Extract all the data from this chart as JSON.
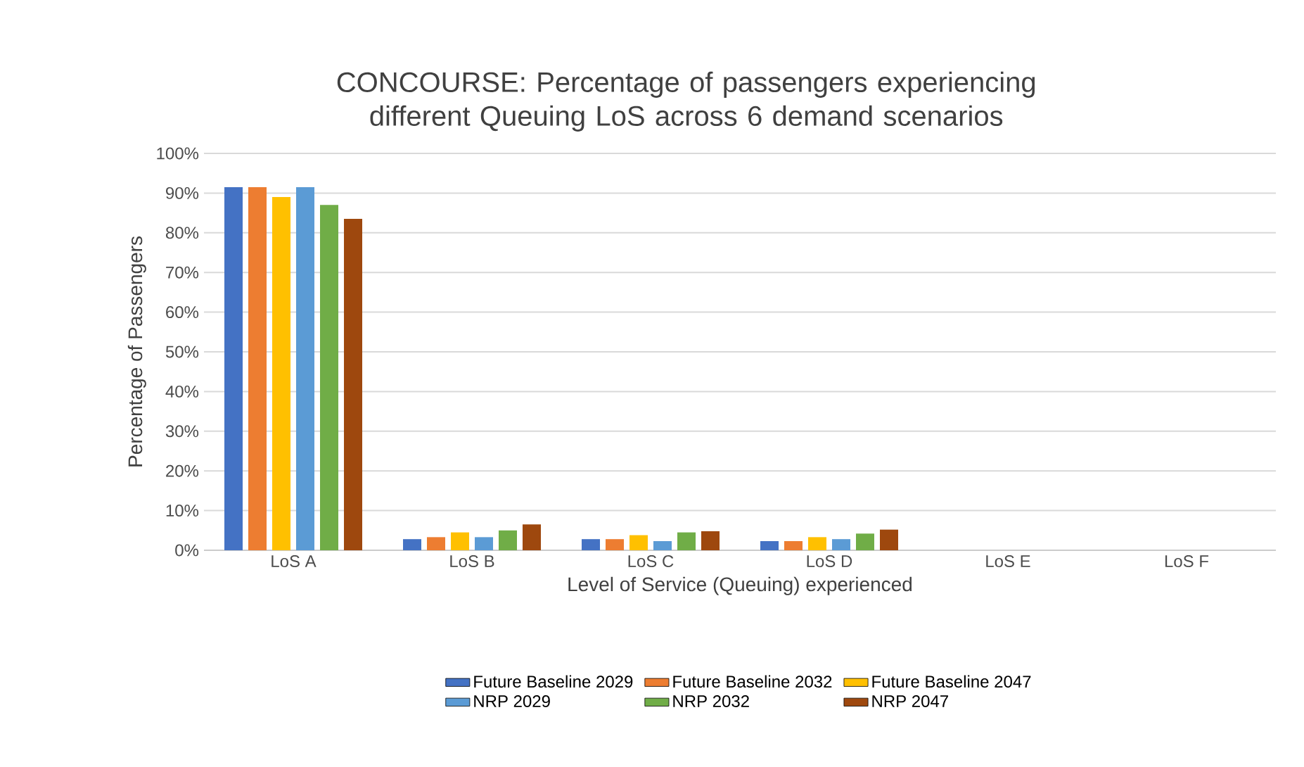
{
  "chart_data": {
    "type": "bar",
    "title": "CONCOURSE: Percentage of passengers experiencing different Queuing LoS across 6 demand scenarios",
    "xlabel": "Level of Service (Queuing) experienced",
    "ylabel": "Percentage of Passengers",
    "categories": [
      "LoS A",
      "LoS B",
      "LoS C",
      "LoS D",
      "LoS E",
      "LoS F"
    ],
    "series": [
      {
        "name": "Future Baseline 2029",
        "color": "#4472c4",
        "values": [
          91.5,
          2.8,
          2.8,
          2.3,
          0,
          0
        ]
      },
      {
        "name": "Future Baseline 2032",
        "color": "#ed7d31",
        "values": [
          91.5,
          3.3,
          2.8,
          2.3,
          0,
          0
        ]
      },
      {
        "name": "Future Baseline 2047",
        "color": "#ffc000",
        "values": [
          89,
          4.5,
          3.8,
          3.3,
          0,
          0
        ]
      },
      {
        "name": "NRP 2029",
        "color": "#5b9bd5",
        "values": [
          91.5,
          3.3,
          2.3,
          2.8,
          0,
          0
        ]
      },
      {
        "name": "NRP 2032",
        "color": "#70ad47",
        "values": [
          87,
          5,
          4.5,
          4.2,
          0,
          0
        ]
      },
      {
        "name": "NRP 2047",
        "color": "#9e480e",
        "values": [
          83.5,
          6.5,
          4.8,
          5.2,
          0,
          0
        ]
      }
    ],
    "ylim": [
      0,
      100
    ],
    "yticks": [
      {
        "value": 0,
        "label": "0%"
      },
      {
        "value": 10,
        "label": "10%"
      },
      {
        "value": 20,
        "label": "20%"
      },
      {
        "value": 30,
        "label": "30%"
      },
      {
        "value": 40,
        "label": "40%"
      },
      {
        "value": 50,
        "label": "50%"
      },
      {
        "value": 60,
        "label": "60%"
      },
      {
        "value": 70,
        "label": "70%"
      },
      {
        "value": 80,
        "label": "80%"
      },
      {
        "value": 90,
        "label": "90%"
      },
      {
        "value": 100,
        "label": "100%"
      }
    ],
    "grid": "y",
    "legend": "bottom"
  }
}
